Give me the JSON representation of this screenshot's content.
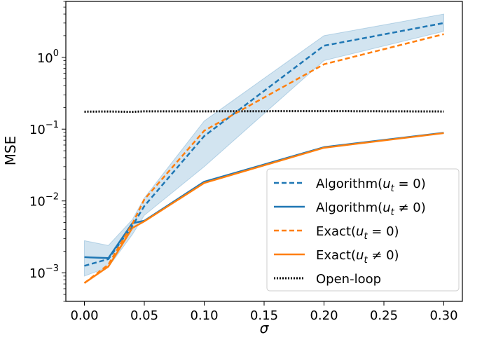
{
  "chart_data": {
    "type": "line",
    "title": "",
    "xlabel": "σ",
    "ylabel": "MSE",
    "yscale": "log",
    "xlim": [
      -0.0155,
      0.3155
    ],
    "ylim": [
      0.0004,
      6.0
    ],
    "grid": false,
    "legend_position": "lower-right",
    "x_ticks": [
      0.0,
      0.05,
      0.1,
      0.15,
      0.2,
      0.25,
      0.3
    ],
    "x_tick_labels": [
      "0.00",
      "0.05",
      "0.10",
      "0.15",
      "0.20",
      "0.25",
      "0.30"
    ],
    "y_ticks": [
      0.001,
      0.01,
      0.1,
      1.0
    ],
    "y_tick_labels": [
      {
        "base": "10",
        "exp": "−3"
      },
      {
        "base": "10",
        "exp": "−2"
      },
      {
        "base": "10",
        "exp": "−1"
      },
      {
        "base": "10",
        "exp": "0"
      }
    ],
    "x": [
      0.0,
      0.02,
      0.04,
      0.05,
      0.1,
      0.2,
      0.3
    ],
    "series": [
      {
        "name": "Algorithm(u_t = 0)",
        "legend_prefix": "Algorithm(",
        "legend_var": "u",
        "legend_sub": "t",
        "legend_op": " = 0)",
        "color": "#1f77b4",
        "style": "dashed",
        "values": [
          0.00125,
          0.00155,
          0.0045,
          0.0085,
          0.08,
          1.45,
          3.0
        ],
        "band_low": [
          0.0009,
          0.0012,
          0.0034,
          0.0063,
          0.03,
          0.9,
          2.3
        ],
        "band_high": [
          0.0028,
          0.0024,
          0.0055,
          0.011,
          0.13,
          2.0,
          4.0
        ]
      },
      {
        "name": "Algorithm(u_t ≠ 0)",
        "legend_prefix": "Algorithm(",
        "legend_var": "u",
        "legend_sub": "t",
        "legend_op": " ≠ 0)",
        "color": "#1f77b4",
        "style": "solid",
        "values": [
          0.00165,
          0.0016,
          0.0049,
          0.0053,
          0.0185,
          0.056,
          0.089
        ]
      },
      {
        "name": "Exact(u_t = 0)",
        "legend_prefix": "Exact(",
        "legend_var": "u",
        "legend_sub": "t",
        "legend_op": " = 0)",
        "color": "#ff7f0e",
        "style": "dashed",
        "values": [
          0.00072,
          0.0013,
          0.0048,
          0.0105,
          0.095,
          0.8,
          2.1
        ]
      },
      {
        "name": "Exact(u_t ≠ 0)",
        "legend_prefix": "Exact(",
        "legend_var": "u",
        "legend_sub": "t",
        "legend_op": " ≠ 0)",
        "color": "#ff7f0e",
        "style": "solid",
        "values": [
          0.00072,
          0.00122,
          0.0042,
          0.0052,
          0.0178,
          0.055,
          0.088
        ]
      },
      {
        "name": "Open-loop",
        "legend_prefix": "Open-loop",
        "legend_var": "",
        "legend_sub": "",
        "legend_op": "",
        "color": "#000000",
        "style": "dotted",
        "values": [
          0.175,
          0.176,
          0.174,
          0.177,
          0.177,
          0.178,
          0.176
        ]
      }
    ]
  }
}
